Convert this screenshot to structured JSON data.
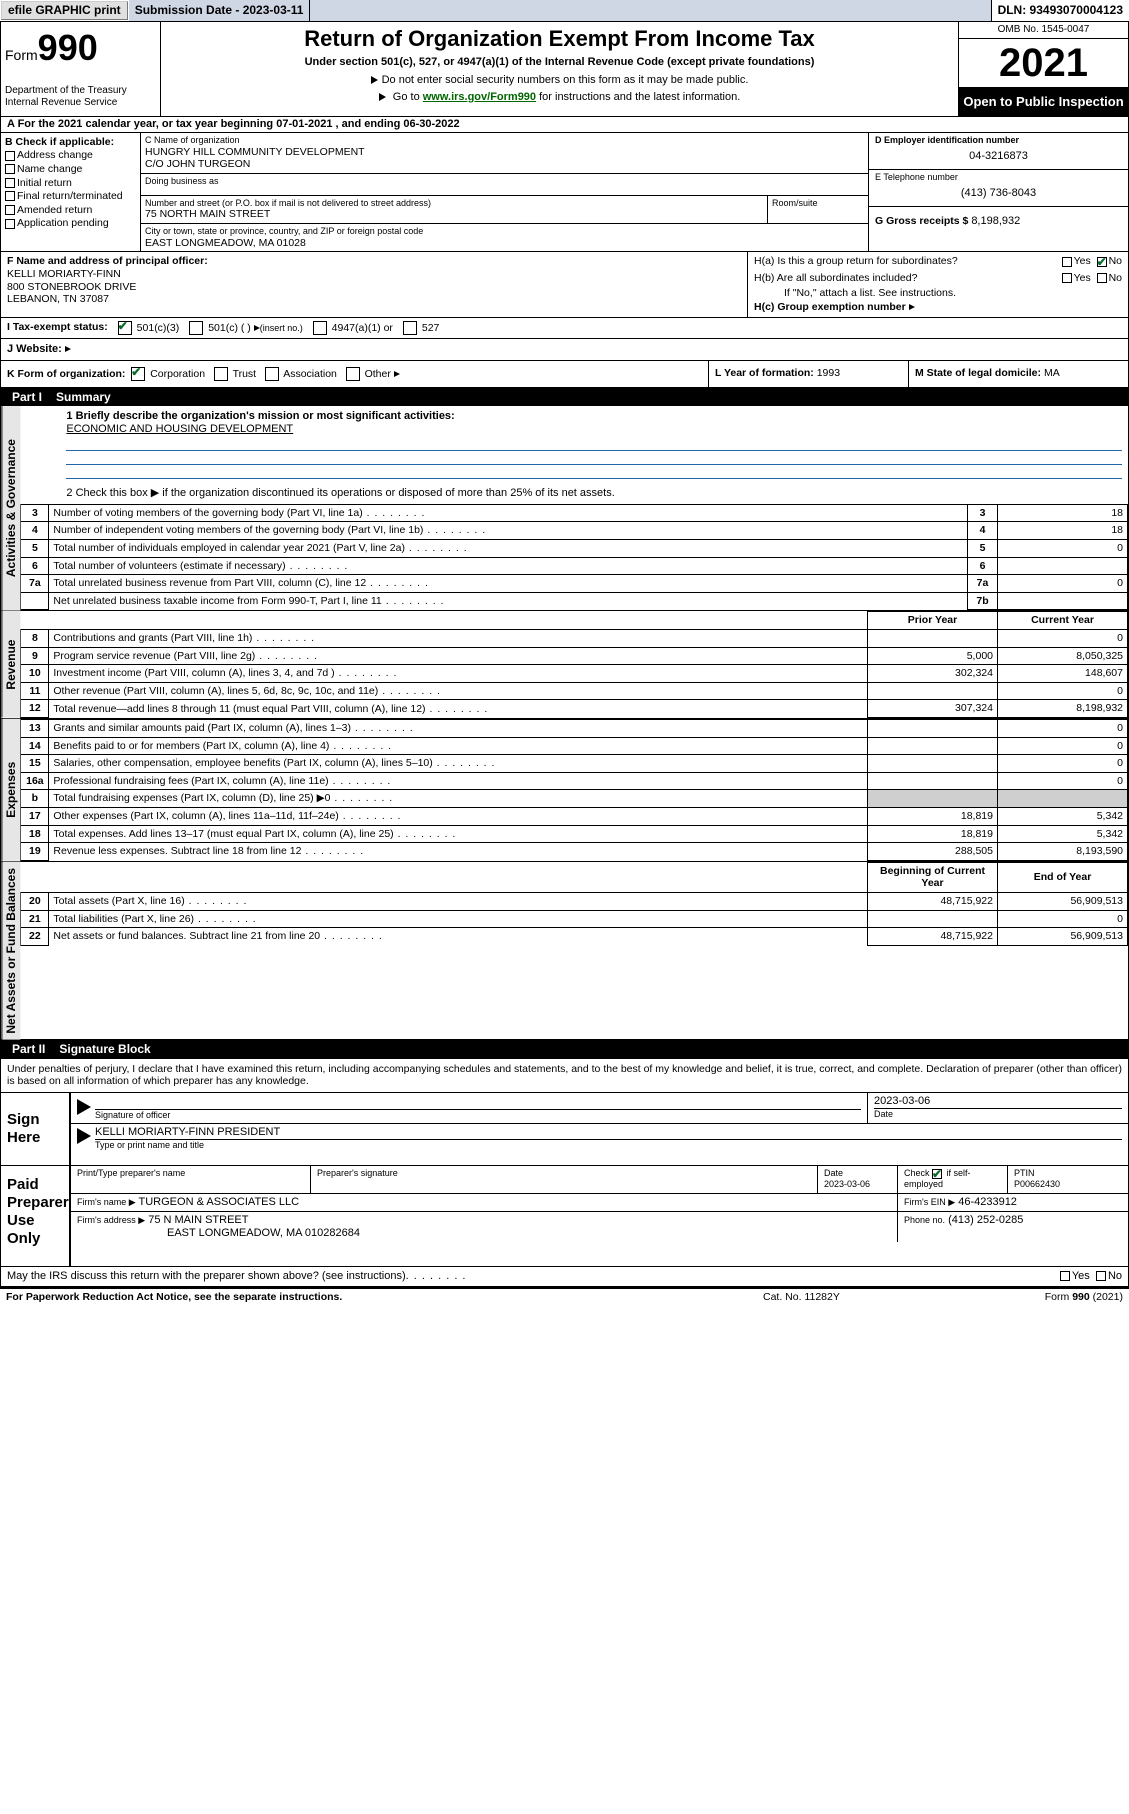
{
  "topbar": {
    "efile": "efile GRAPHIC print",
    "submission_label": "Submission Date - 2023-03-11",
    "dln_label": "DLN: 93493070004123"
  },
  "header": {
    "form_word": "Form",
    "form_num": "990",
    "dept": "Department of the Treasury\nInternal Revenue Service",
    "title": "Return of Organization Exempt From Income Tax",
    "subtitle": "Under section 501(c), 527, or 4947(a)(1) of the Internal Revenue Code (except private foundations)",
    "note1": "Do not enter social security numbers on this form as it may be made public.",
    "note2_pre": "Go to ",
    "note2_link": "www.irs.gov/Form990",
    "note2_post": " for instructions and the latest information.",
    "omb": "OMB No. 1545-0047",
    "year": "2021",
    "inspect": "Open to Public Inspection"
  },
  "lineA": {
    "prefix": "A For the 2021 calendar year, or tax year beginning ",
    "begin": "07-01-2021",
    "mid": " , and ending ",
    "end": "06-30-2022"
  },
  "colB": {
    "label": "B Check if applicable:",
    "opts": [
      "Address change",
      "Name change",
      "Initial return",
      "Final return/terminated",
      "Amended return",
      "Application pending"
    ]
  },
  "colC": {
    "name_lbl": "C Name of organization",
    "name": "HUNGRY HILL COMMUNITY DEVELOPMENT",
    "care_of": "C/O JOHN TURGEON",
    "dba_lbl": "Doing business as",
    "dba": "",
    "addr_lbl": "Number and street (or P.O. box if mail is not delivered to street address)",
    "room_lbl": "Room/suite",
    "addr": "75 NORTH MAIN STREET",
    "city_lbl": "City or town, state or province, country, and ZIP or foreign postal code",
    "city": "EAST LONGMEADOW, MA  01028"
  },
  "colD": {
    "ein_lbl": "D Employer identification number",
    "ein": "04-3216873",
    "tel_lbl": "E Telephone number",
    "tel": "(413) 736-8043",
    "gross_lbl": "G Gross receipts $",
    "gross": "8,198,932"
  },
  "rowF": {
    "lbl": "F Name and address of principal officer:",
    "name": "KELLI MORIARTY-FINN",
    "addr1": "800 STONEBROOK DRIVE",
    "addr2": "LEBANON, TN  37087"
  },
  "rowH": {
    "ha": "H(a)  Is this a group return for subordinates?",
    "hb": "H(b)  Are all subordinates included?",
    "hb_note": "If \"No,\" attach a list. See instructions.",
    "hc": "H(c)  Group exemption number",
    "yes": "Yes",
    "no": "No"
  },
  "rowI": {
    "lbl": "I  Tax-exempt status:",
    "o1": "501(c)(3)",
    "o2": "501(c) (   )",
    "o2s": "(insert no.)",
    "o3": "4947(a)(1) or",
    "o4": "527"
  },
  "rowJ": {
    "lbl": "J  Website:",
    "arrow": "▶"
  },
  "rowK": {
    "lbl": "K Form of organization:",
    "opts": [
      "Corporation",
      "Trust",
      "Association",
      "Other"
    ],
    "yof_lbl": "L Year of formation:",
    "yof": "1993",
    "dom_lbl": "M State of legal domicile:",
    "dom": "MA"
  },
  "part1": {
    "hdr": "Part I",
    "title": "Summary"
  },
  "summary": {
    "q1_lbl": "1  Briefly describe the organization's mission or most significant activities:",
    "q1_val": "ECONOMIC AND HOUSING DEVELOPMENT",
    "q2": "2  Check this box ▶        if the organization discontinued its operations or disposed of more than 25% of its net assets.",
    "tabs": {
      "gov": "Activities & Governance",
      "rev": "Revenue",
      "exp": "Expenses",
      "net": "Net Assets or Fund Balances"
    },
    "gov_rows": [
      {
        "n": "3",
        "t": "Number of voting members of the governing body (Part VI, line 1a)",
        "ref": "3",
        "v": "18"
      },
      {
        "n": "4",
        "t": "Number of independent voting members of the governing body (Part VI, line 1b)",
        "ref": "4",
        "v": "18"
      },
      {
        "n": "5",
        "t": "Total number of individuals employed in calendar year 2021 (Part V, line 2a)",
        "ref": "5",
        "v": "0"
      },
      {
        "n": "6",
        "t": "Total number of volunteers (estimate if necessary)",
        "ref": "6",
        "v": ""
      },
      {
        "n": "7a",
        "t": "Total unrelated business revenue from Part VIII, column (C), line 12",
        "ref": "7a",
        "v": "0"
      },
      {
        "n": "",
        "t": "Net unrelated business taxable income from Form 990-T, Part I, line 11",
        "ref": "7b",
        "v": ""
      }
    ],
    "col_hdr_prior": "Prior Year",
    "col_hdr_current": "Current Year",
    "rev_rows": [
      {
        "n": "8",
        "t": "Contributions and grants (Part VIII, line 1h)",
        "p": "",
        "c": "0"
      },
      {
        "n": "9",
        "t": "Program service revenue (Part VIII, line 2g)",
        "p": "5,000",
        "c": "8,050,325"
      },
      {
        "n": "10",
        "t": "Investment income (Part VIII, column (A), lines 3, 4, and 7d )",
        "p": "302,324",
        "c": "148,607"
      },
      {
        "n": "11",
        "t": "Other revenue (Part VIII, column (A), lines 5, 6d, 8c, 9c, 10c, and 11e)",
        "p": "",
        "c": "0"
      },
      {
        "n": "12",
        "t": "Total revenue—add lines 8 through 11 (must equal Part VIII, column (A), line 12)",
        "p": "307,324",
        "c": "8,198,932"
      }
    ],
    "exp_rows": [
      {
        "n": "13",
        "t": "Grants and similar amounts paid (Part IX, column (A), lines 1–3)",
        "p": "",
        "c": "0"
      },
      {
        "n": "14",
        "t": "Benefits paid to or for members (Part IX, column (A), line 4)",
        "p": "",
        "c": "0"
      },
      {
        "n": "15",
        "t": "Salaries, other compensation, employee benefits (Part IX, column (A), lines 5–10)",
        "p": "",
        "c": "0"
      },
      {
        "n": "16a",
        "t": "Professional fundraising fees (Part IX, column (A), line 11e)",
        "p": "",
        "c": "0"
      },
      {
        "n": "b",
        "t": "Total fundraising expenses (Part IX, column (D), line 25) ▶0",
        "p": "shade",
        "c": "shade"
      },
      {
        "n": "17",
        "t": "Other expenses (Part IX, column (A), lines 11a–11d, 11f–24e)",
        "p": "18,819",
        "c": "5,342"
      },
      {
        "n": "18",
        "t": "Total expenses. Add lines 13–17 (must equal Part IX, column (A), line 25)",
        "p": "18,819",
        "c": "5,342"
      },
      {
        "n": "19",
        "t": "Revenue less expenses. Subtract line 18 from line 12",
        "p": "288,505",
        "c": "8,193,590"
      }
    ],
    "net_hdr_begin": "Beginning of Current Year",
    "net_hdr_end": "End of Year",
    "net_rows": [
      {
        "n": "20",
        "t": "Total assets (Part X, line 16)",
        "p": "48,715,922",
        "c": "56,909,513"
      },
      {
        "n": "21",
        "t": "Total liabilities (Part X, line 26)",
        "p": "",
        "c": "0"
      },
      {
        "n": "22",
        "t": "Net assets or fund balances. Subtract line 21 from line 20",
        "p": "48,715,922",
        "c": "56,909,513"
      }
    ]
  },
  "part2": {
    "hdr": "Part II",
    "title": "Signature Block"
  },
  "sig": {
    "intro": "Under penalties of perjury, I declare that I have examined this return, including accompanying schedules and statements, and to the best of my knowledge and belief, it is true, correct, and complete. Declaration of preparer (other than officer) is based on all information of which preparer has any knowledge.",
    "sign_here": "Sign Here",
    "sig_officer_lbl": "Signature of officer",
    "date_lbl": "Date",
    "date_val": "2023-03-06",
    "name_title": "KELLI MORIARTY-FINN  PRESIDENT",
    "name_title_lbl": "Type or print name and title",
    "paid": "Paid Preparer Use Only",
    "prep_name_lbl": "Print/Type preparer's name",
    "prep_sig_lbl": "Preparer's signature",
    "prep_date_lbl": "Date",
    "prep_date": "2023-03-06",
    "self_emp_lbl": "Check        if self-employed",
    "ptin_lbl": "PTIN",
    "ptin": "P00662430",
    "firm_name_lbl": "Firm's name    ▶",
    "firm_name": "TURGEON & ASSOCIATES LLC",
    "firm_ein_lbl": "Firm's EIN ▶",
    "firm_ein": "46-4233912",
    "firm_addr_lbl": "Firm's address ▶",
    "firm_addr1": "75 N MAIN STREET",
    "firm_addr2": "EAST LONGMEADOW, MA  010282684",
    "firm_phone_lbl": "Phone no.",
    "firm_phone": "(413) 252-0285",
    "discuss": "May the IRS discuss this return with the preparer shown above? (see instructions)"
  },
  "footer": {
    "left": "For Paperwork Reduction Act Notice, see the separate instructions.",
    "mid": "Cat. No. 11282Y",
    "right": "Form 990 (2021)"
  },
  "colors": {
    "link": "#006600",
    "topfield": "#cfd6e4",
    "shade": "#cfcfcf",
    "graybg": "#e6e6e6"
  }
}
